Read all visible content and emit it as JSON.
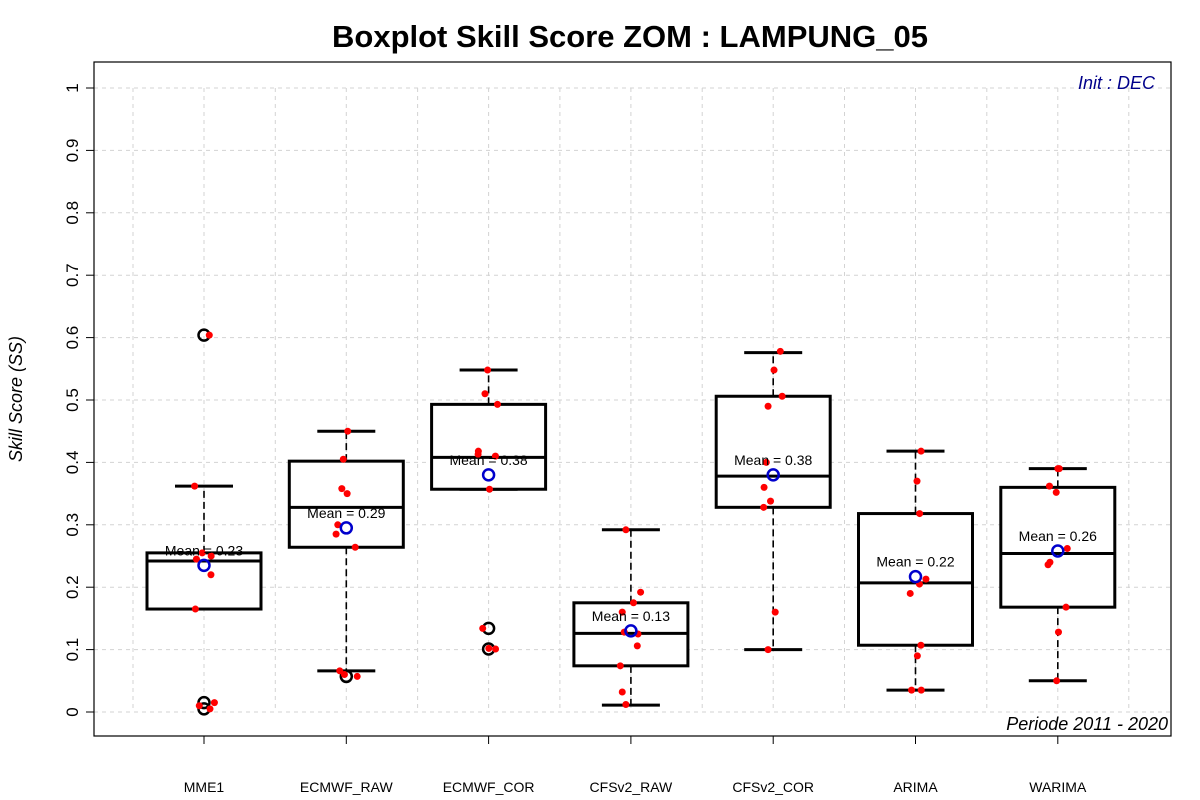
{
  "chart_data": {
    "type": "boxplot",
    "title": "Boxplot Skill Score ZOM : LAMPUNG_05",
    "ylabel": "Skill Score (SS)",
    "xlabel": "",
    "ylim": [
      0,
      1
    ],
    "y_ticks": [
      "0",
      "0.1",
      "0.2",
      "0.3",
      "0.4",
      "0.5",
      "0.6",
      "0.7",
      "0.8",
      "0.9",
      "1"
    ],
    "grid": true,
    "annotation_top_right": "Init : DEC",
    "annotation_bottom_right": "Periode 2011 - 2020",
    "colors": {
      "points": "#ff0000",
      "mean_marker": "#0000cc",
      "init_note": "#00008b",
      "grid": "#d3d3d3",
      "box": "#000000"
    },
    "categories": [
      "MME1",
      "ECMWF_RAW",
      "ECMWF_COR",
      "CFSv2_RAW",
      "CFSv2_COR",
      "ARIMA",
      "WARIMA"
    ],
    "series": [
      {
        "category": "MME1",
        "whisker_low": 0.165,
        "q1": 0.165,
        "median": 0.242,
        "q3": 0.255,
        "whisker_high": 0.362,
        "mean": 0.235,
        "mean_label": "Mean = 0.23",
        "outliers": [
          0.604,
          0.015,
          0.005
        ],
        "points": [
          0.604,
          0.362,
          0.255,
          0.25,
          0.245,
          0.22,
          0.165,
          0.015,
          0.01,
          0.005
        ]
      },
      {
        "category": "ECMWF_RAW",
        "whisker_low": 0.066,
        "q1": 0.264,
        "median": 0.328,
        "q3": 0.402,
        "whisker_high": 0.45,
        "mean": 0.295,
        "mean_label": "Mean = 0.29",
        "outliers": [
          0.057
        ],
        "points": [
          0.45,
          0.405,
          0.358,
          0.35,
          0.3,
          0.285,
          0.264,
          0.066,
          0.06,
          0.057
        ]
      },
      {
        "category": "ECMWF_COR",
        "whisker_low": 0.357,
        "q1": 0.357,
        "median": 0.408,
        "q3": 0.493,
        "whisker_high": 0.548,
        "mean": 0.38,
        "mean_label": "Mean = 0.38",
        "outliers": [
          0.134,
          0.101
        ],
        "points": [
          0.548,
          0.51,
          0.493,
          0.418,
          0.41,
          0.413,
          0.357,
          0.134,
          0.102,
          0.101
        ]
      },
      {
        "category": "CFSv2_RAW",
        "whisker_low": 0.011,
        "q1": 0.074,
        "median": 0.126,
        "q3": 0.175,
        "whisker_high": 0.292,
        "mean": 0.13,
        "mean_label": "Mean = 0.13",
        "outliers": [],
        "points": [
          0.292,
          0.192,
          0.175,
          0.16,
          0.128,
          0.125,
          0.106,
          0.074,
          0.032,
          0.012
        ]
      },
      {
        "category": "CFSv2_COR",
        "whisker_low": 0.1,
        "q1": 0.328,
        "median": 0.378,
        "q3": 0.506,
        "whisker_high": 0.576,
        "mean": 0.38,
        "mean_label": "Mean = 0.38",
        "outliers": [],
        "points": [
          0.578,
          0.548,
          0.506,
          0.49,
          0.4,
          0.36,
          0.338,
          0.328,
          0.16,
          0.1
        ]
      },
      {
        "category": "ARIMA",
        "whisker_low": 0.035,
        "q1": 0.107,
        "median": 0.207,
        "q3": 0.318,
        "whisker_high": 0.418,
        "mean": 0.217,
        "mean_label": "Mean = 0.22",
        "outliers": [],
        "points": [
          0.418,
          0.37,
          0.318,
          0.213,
          0.205,
          0.19,
          0.107,
          0.09,
          0.035,
          0.035
        ]
      },
      {
        "category": "WARIMA",
        "whisker_low": 0.05,
        "q1": 0.168,
        "median": 0.254,
        "q3": 0.36,
        "whisker_high": 0.39,
        "mean": 0.258,
        "mean_label": "Mean = 0.26",
        "outliers": [],
        "points": [
          0.39,
          0.39,
          0.362,
          0.352,
          0.262,
          0.24,
          0.236,
          0.168,
          0.128,
          0.05
        ]
      }
    ]
  }
}
